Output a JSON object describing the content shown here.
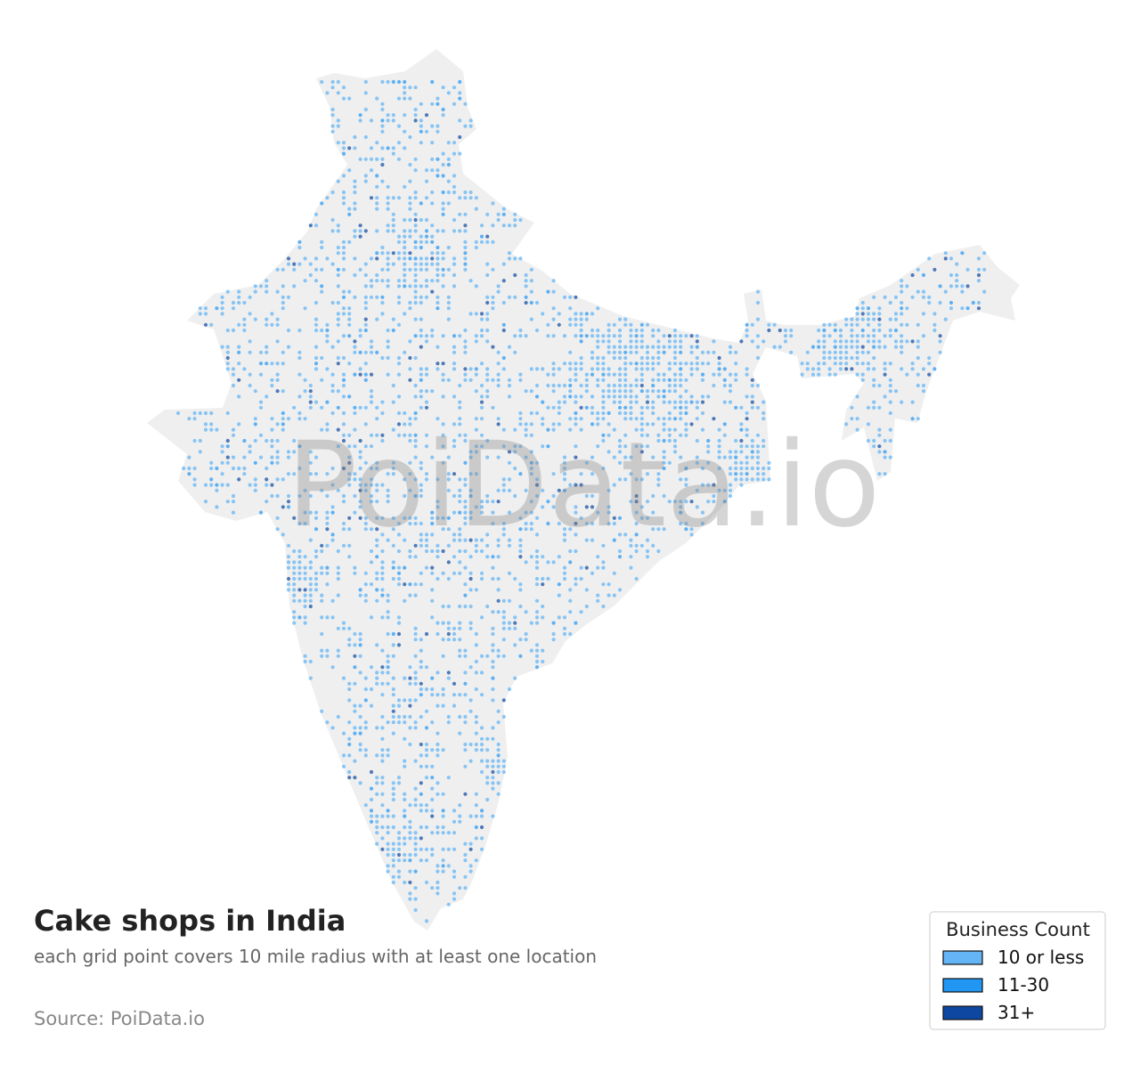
{
  "header": {
    "title": "Cake shops in India",
    "subtitle": "each grid point covers 10 mile radius with at least one location",
    "source": "Source: PoiData.io"
  },
  "watermark": "PoiData.io",
  "legend": {
    "title": "Business Count",
    "items": [
      {
        "label": "10 or less",
        "color": "#64b5f6"
      },
      {
        "label": "11-30",
        "color": "#2196f3"
      },
      {
        "label": "31+",
        "color": "#0d47a1"
      }
    ]
  }
}
